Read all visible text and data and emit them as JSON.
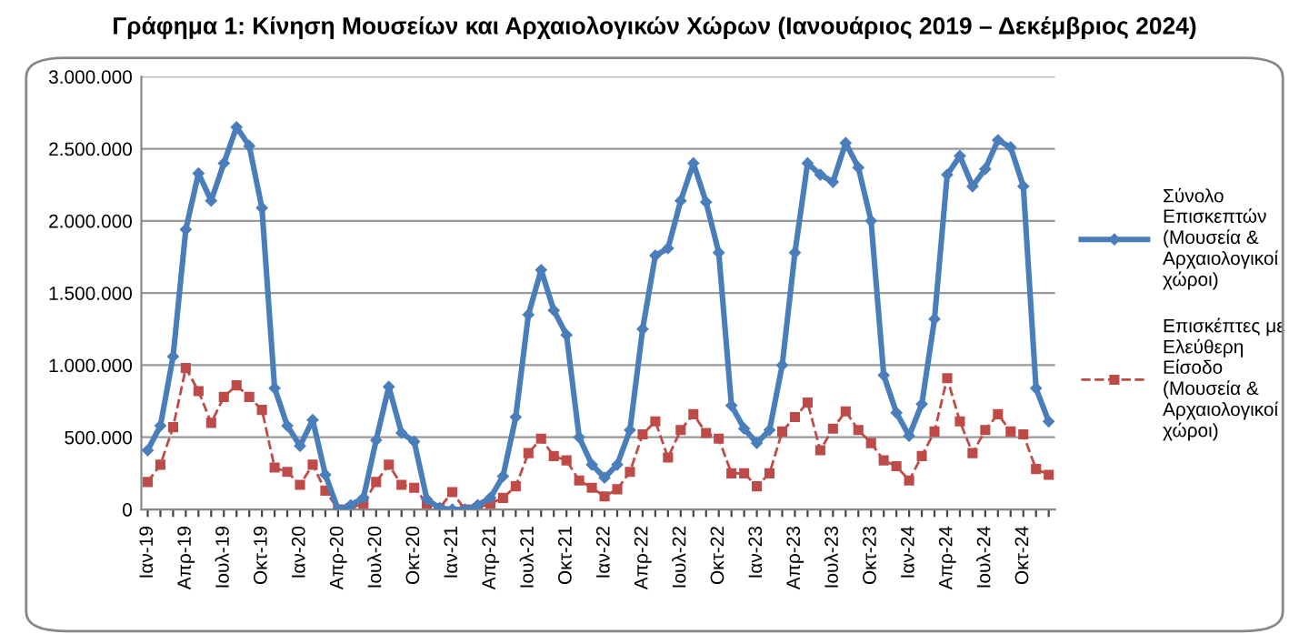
{
  "chart_data": {
    "type": "line",
    "title": "Γράφημα 1: Κίνηση Μουσείων και Αρχαιολογικών Χώρων (Ιανουάριος 2019 – Δεκέμβριος 2024)",
    "categories": [
      "Ιαν-19",
      null,
      null,
      "Απρ-19",
      null,
      null,
      "Ιουλ-19",
      null,
      null,
      "Οκτ-19",
      null,
      null,
      "Ιαν-20",
      null,
      null,
      "Απρ-20",
      null,
      null,
      "Ιουλ-20",
      null,
      null,
      "Οκτ-20",
      null,
      null,
      "Ιαν-21",
      null,
      null,
      "Απρ-21",
      null,
      null,
      "Ιουλ-21",
      null,
      null,
      "Οκτ-21",
      null,
      null,
      "Ιαν-22",
      null,
      null,
      "Απρ-22",
      null,
      null,
      "Ιουλ-22",
      null,
      null,
      "Οκτ-22",
      null,
      null,
      "Ιαν-23",
      null,
      null,
      "Απρ-23",
      null,
      null,
      "Ιουλ-23",
      null,
      null,
      "Οκτ-23",
      null,
      null,
      "Ιαν-24",
      null,
      null,
      "Απρ-24",
      null,
      null,
      "Ιουλ-24",
      null,
      null,
      "Οκτ-24",
      null,
      null
    ],
    "series": [
      {
        "name": "Σύνολο Επισκεπτών (Μουσεία & Αρχαιολογικοί χώροι)",
        "color": "#4a7ebb",
        "marker": "diamond",
        "line_style": "solid",
        "values": [
          410000,
          580000,
          1060000,
          1940000,
          2330000,
          2140000,
          2400000,
          2650000,
          2520000,
          2090000,
          840000,
          580000,
          440000,
          620000,
          240000,
          0,
          30000,
          80000,
          480000,
          850000,
          530000,
          470000,
          70000,
          10000,
          0,
          0,
          30000,
          80000,
          230000,
          640000,
          1350000,
          1660000,
          1380000,
          1210000,
          500000,
          310000,
          220000,
          310000,
          550000,
          1250000,
          1760000,
          1810000,
          2140000,
          2400000,
          2130000,
          1780000,
          720000,
          560000,
          460000,
          550000,
          1000000,
          1780000,
          2400000,
          2320000,
          2270000,
          2540000,
          2370000,
          2000000,
          930000,
          670000,
          510000,
          730000,
          1320000,
          2320000,
          2450000,
          2240000,
          2360000,
          2560000,
          2510000,
          2240000,
          840000,
          610000
        ]
      },
      {
        "name": "Επισκέπτες με Ελεύθερη Είσοδο (Μουσεία & Αρχαιολογικοί χώροι)",
        "color": "#be4b48",
        "marker": "square",
        "line_style": "dashed",
        "values": [
          190000,
          310000,
          570000,
          980000,
          820000,
          600000,
          780000,
          860000,
          780000,
          690000,
          290000,
          260000,
          170000,
          310000,
          130000,
          0,
          10000,
          40000,
          190000,
          310000,
          170000,
          150000,
          40000,
          10000,
          120000,
          0,
          10000,
          40000,
          80000,
          160000,
          390000,
          490000,
          370000,
          340000,
          200000,
          150000,
          90000,
          140000,
          260000,
          520000,
          610000,
          360000,
          550000,
          660000,
          530000,
          490000,
          250000,
          250000,
          160000,
          250000,
          540000,
          640000,
          740000,
          410000,
          560000,
          680000,
          550000,
          460000,
          340000,
          300000,
          200000,
          370000,
          540000,
          910000,
          610000,
          390000,
          550000,
          660000,
          540000,
          520000,
          280000,
          240000
        ]
      }
    ],
    "ylim": [
      0,
      3000000
    ],
    "yticks": [
      0,
      {
        "value": 500000,
        "label": "500.000"
      },
      {
        "value": 1000000,
        "label": "1.000.000"
      },
      {
        "value": 1500000,
        "label": "1.500.000"
      },
      {
        "value": 2000000,
        "label": "2.000.000"
      },
      {
        "value": 2500000,
        "label": "2.500.000"
      },
      {
        "value": 3000000,
        "label": "3.000.000"
      }
    ],
    "grid": "y",
    "legend": "right"
  }
}
